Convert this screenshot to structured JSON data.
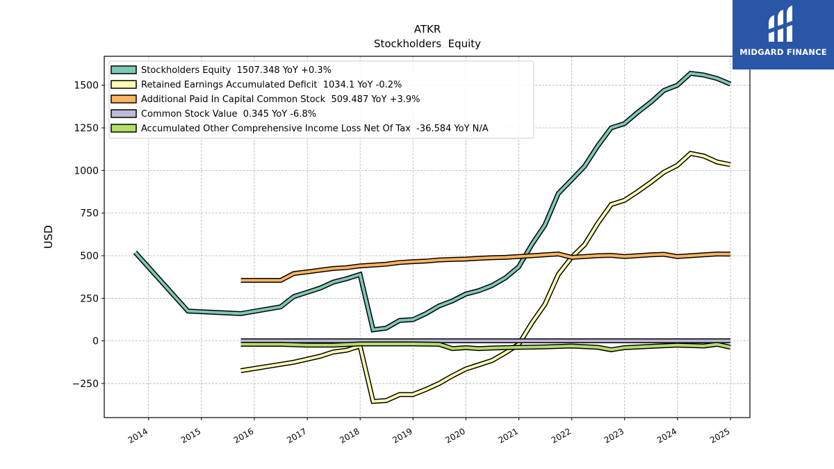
{
  "brand": {
    "name": "MIDGARD FINANCE",
    "bg_color": "#2a56a8"
  },
  "chart_data": {
    "type": "line",
    "title": "ATKR",
    "subtitle": "Stockholders  Equity",
    "ylabel": "USD",
    "xlabel": "",
    "xlim": [
      "2013-03-01",
      "2025-05-15"
    ],
    "ylim": [
      -450,
      1670
    ],
    "x_ticks": [
      "2014",
      "2015",
      "2016",
      "2017",
      "2018",
      "2019",
      "2020",
      "2021",
      "2022",
      "2023",
      "2024",
      "2025"
    ],
    "y_ticks": [
      -250,
      0,
      250,
      500,
      750,
      1000,
      1250,
      1500
    ],
    "grid": true,
    "legend_position": "upper-left",
    "series": [
      {
        "name": "Stockholders Equity  1507.348 YoY +0.3%",
        "color": "#7ec8b8",
        "points": [
          [
            "2013-09-30",
            520
          ],
          [
            "2014-09-30",
            175
          ],
          [
            "2015-09-30",
            160
          ],
          [
            "2016-07-01",
            200
          ],
          [
            "2016-09-30",
            260
          ],
          [
            "2016-12-31",
            285
          ],
          [
            "2017-03-31",
            310
          ],
          [
            "2017-06-30",
            345
          ],
          [
            "2017-09-30",
            365
          ],
          [
            "2017-12-31",
            390
          ],
          [
            "2018-03-31",
            65
          ],
          [
            "2018-06-30",
            75
          ],
          [
            "2018-09-30",
            120
          ],
          [
            "2018-12-31",
            125
          ],
          [
            "2019-03-31",
            160
          ],
          [
            "2019-06-30",
            205
          ],
          [
            "2019-09-30",
            235
          ],
          [
            "2019-12-31",
            275
          ],
          [
            "2020-03-31",
            295
          ],
          [
            "2020-06-30",
            325
          ],
          [
            "2020-09-30",
            370
          ],
          [
            "2020-12-31",
            435
          ],
          [
            "2021-03-31",
            565
          ],
          [
            "2021-06-30",
            680
          ],
          [
            "2021-09-30",
            865
          ],
          [
            "2021-12-31",
            945
          ],
          [
            "2022-03-31",
            1025
          ],
          [
            "2022-06-30",
            1145
          ],
          [
            "2022-09-30",
            1250
          ],
          [
            "2022-12-31",
            1275
          ],
          [
            "2023-03-31",
            1340
          ],
          [
            "2023-06-30",
            1400
          ],
          [
            "2023-09-30",
            1470
          ],
          [
            "2023-12-31",
            1500
          ],
          [
            "2024-03-31",
            1570
          ],
          [
            "2024-06-30",
            1560
          ],
          [
            "2024-09-30",
            1540
          ],
          [
            "2024-12-31",
            1507
          ]
        ]
      },
      {
        "name": "Retained Earnings Accumulated Deficit  1034.1 YoY -0.2%",
        "color": "#ffffb3",
        "points": [
          [
            "2015-09-30",
            -175
          ],
          [
            "2016-09-30",
            -125
          ],
          [
            "2017-03-31",
            -90
          ],
          [
            "2017-06-30",
            -65
          ],
          [
            "2017-09-30",
            -55
          ],
          [
            "2017-12-31",
            -30
          ],
          [
            "2018-03-31",
            -355
          ],
          [
            "2018-06-30",
            -350
          ],
          [
            "2018-09-30",
            -315
          ],
          [
            "2018-12-31",
            -315
          ],
          [
            "2019-03-31",
            -285
          ],
          [
            "2019-06-30",
            -250
          ],
          [
            "2019-09-30",
            -205
          ],
          [
            "2019-12-31",
            -165
          ],
          [
            "2020-03-31",
            -140
          ],
          [
            "2020-06-30",
            -115
          ],
          [
            "2020-09-30",
            -70
          ],
          [
            "2020-12-31",
            -20
          ],
          [
            "2021-03-31",
            105
          ],
          [
            "2021-06-30",
            215
          ],
          [
            "2021-09-30",
            390
          ],
          [
            "2021-12-31",
            490
          ],
          [
            "2022-03-31",
            565
          ],
          [
            "2022-06-30",
            690
          ],
          [
            "2022-09-30",
            800
          ],
          [
            "2022-12-31",
            825
          ],
          [
            "2023-03-31",
            875
          ],
          [
            "2023-06-30",
            930
          ],
          [
            "2023-09-30",
            990
          ],
          [
            "2023-12-31",
            1030
          ],
          [
            "2024-03-31",
            1100
          ],
          [
            "2024-06-30",
            1085
          ],
          [
            "2024-09-30",
            1050
          ],
          [
            "2024-12-31",
            1034
          ]
        ]
      },
      {
        "name": "Additional Paid In Capital Common Stock  509.487 YoY +3.9%",
        "color": "#fdb462",
        "points": [
          [
            "2015-09-30",
            355
          ],
          [
            "2016-07-01",
            355
          ],
          [
            "2016-09-30",
            395
          ],
          [
            "2016-12-31",
            405
          ],
          [
            "2017-03-31",
            415
          ],
          [
            "2017-06-30",
            425
          ],
          [
            "2017-09-30",
            430
          ],
          [
            "2017-12-31",
            440
          ],
          [
            "2018-03-31",
            445
          ],
          [
            "2018-06-30",
            450
          ],
          [
            "2018-09-30",
            460
          ],
          [
            "2018-12-31",
            465
          ],
          [
            "2019-03-31",
            468
          ],
          [
            "2019-06-30",
            475
          ],
          [
            "2019-09-30",
            478
          ],
          [
            "2019-12-31",
            480
          ],
          [
            "2020-03-31",
            485
          ],
          [
            "2020-06-30",
            488
          ],
          [
            "2020-09-30",
            490
          ],
          [
            "2020-12-31",
            495
          ],
          [
            "2021-03-31",
            500
          ],
          [
            "2021-06-30",
            505
          ],
          [
            "2021-09-30",
            510
          ],
          [
            "2021-12-31",
            490
          ],
          [
            "2022-03-31",
            495
          ],
          [
            "2022-06-30",
            500
          ],
          [
            "2022-09-30",
            502
          ],
          [
            "2022-12-31",
            495
          ],
          [
            "2023-03-31",
            500
          ],
          [
            "2023-06-30",
            505
          ],
          [
            "2023-09-30",
            508
          ],
          [
            "2023-12-31",
            495
          ],
          [
            "2024-03-31",
            500
          ],
          [
            "2024-06-30",
            505
          ],
          [
            "2024-09-30",
            510
          ],
          [
            "2024-12-31",
            509
          ]
        ]
      },
      {
        "name": "Common Stock Value  0.345 YoY -6.8%",
        "color": "#bebada",
        "points": [
          [
            "2015-09-30",
            0.4
          ],
          [
            "2024-12-31",
            0.345
          ]
        ]
      },
      {
        "name": "Accumulated Other Comprehensive Income Loss Net Of Tax  -36.584 YoY N/A",
        "color": "#b3de69",
        "points": [
          [
            "2015-09-30",
            -20
          ],
          [
            "2016-07-01",
            -20
          ],
          [
            "2016-12-31",
            -25
          ],
          [
            "2017-06-30",
            -25
          ],
          [
            "2017-12-31",
            -18
          ],
          [
            "2018-06-30",
            -18
          ],
          [
            "2018-12-31",
            -18
          ],
          [
            "2019-06-30",
            -20
          ],
          [
            "2019-09-30",
            -45
          ],
          [
            "2019-12-31",
            -40
          ],
          [
            "2020-03-31",
            -45
          ],
          [
            "2020-06-30",
            -42
          ],
          [
            "2020-12-31",
            -38
          ],
          [
            "2021-06-30",
            -35
          ],
          [
            "2021-12-31",
            -30
          ],
          [
            "2022-06-30",
            -38
          ],
          [
            "2022-09-30",
            -52
          ],
          [
            "2022-12-31",
            -40
          ],
          [
            "2023-06-30",
            -32
          ],
          [
            "2023-12-31",
            -25
          ],
          [
            "2024-06-30",
            -30
          ],
          [
            "2024-09-30",
            -20
          ],
          [
            "2024-12-31",
            -37
          ]
        ]
      }
    ]
  }
}
